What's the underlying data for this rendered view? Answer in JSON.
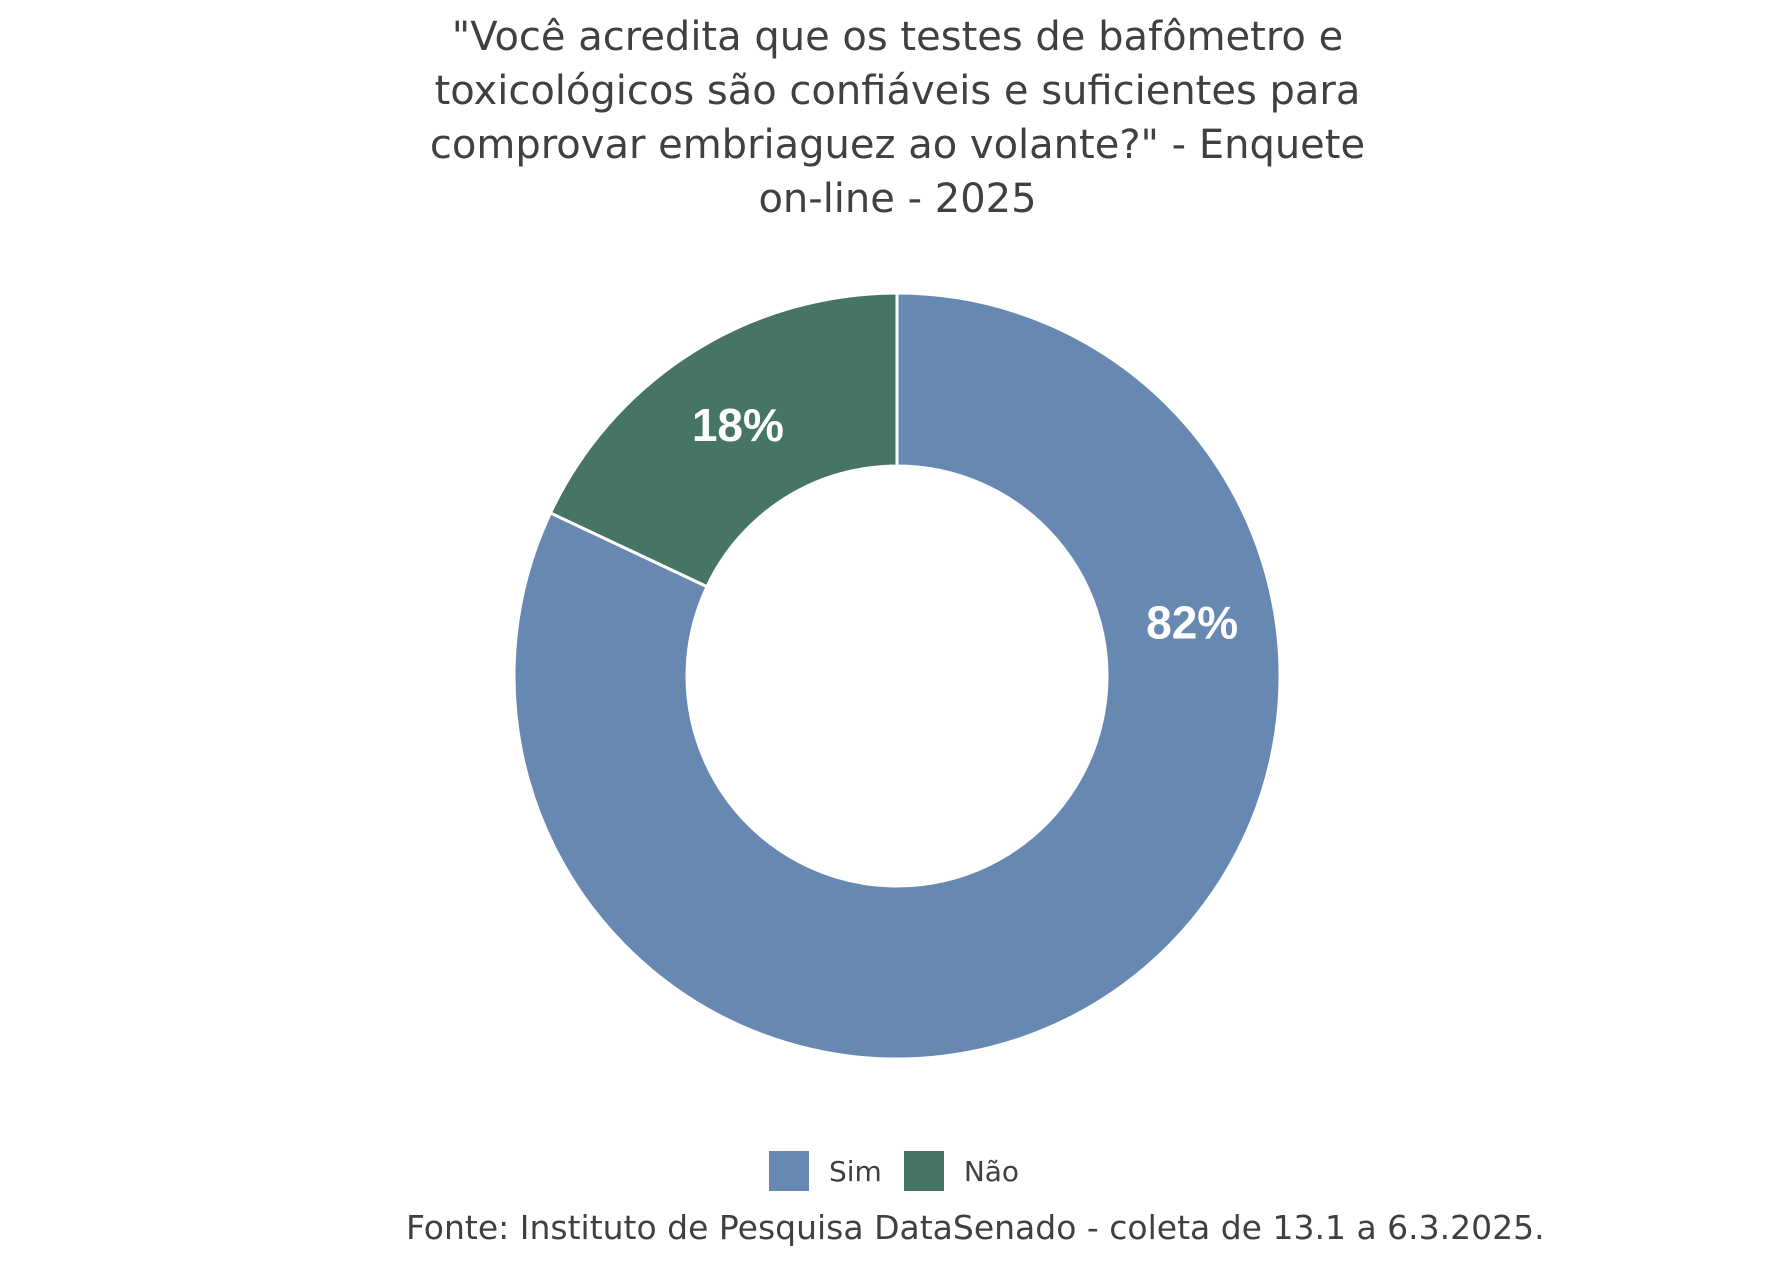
{
  "chart_data": {
    "type": "pie",
    "variant": "donut",
    "title": "\"Você acredita que os testes de bafômetro e toxicológicos são confiáveis e suficientes para comprovar embriaguez ao volante?\" - Enquete on-line - 2025",
    "title_lines": [
      "\"Você acredita que os testes de bafômetro e",
      "toxicológicos são confiáveis e suficientes para",
      "comprovar embriaguez ao volante?\" - Enquete",
      "on-line - 2025"
    ],
    "categories": [
      "Sim",
      "Não"
    ],
    "values": [
      82,
      18
    ],
    "data_labels": [
      "82%",
      "18%"
    ],
    "colors": [
      "#6688b1",
      "#467563"
    ],
    "legend_position": "bottom",
    "source": "Fonte: Instituto de Pesquisa DataSenado - coleta de 13.1 a 6.3.2025."
  }
}
